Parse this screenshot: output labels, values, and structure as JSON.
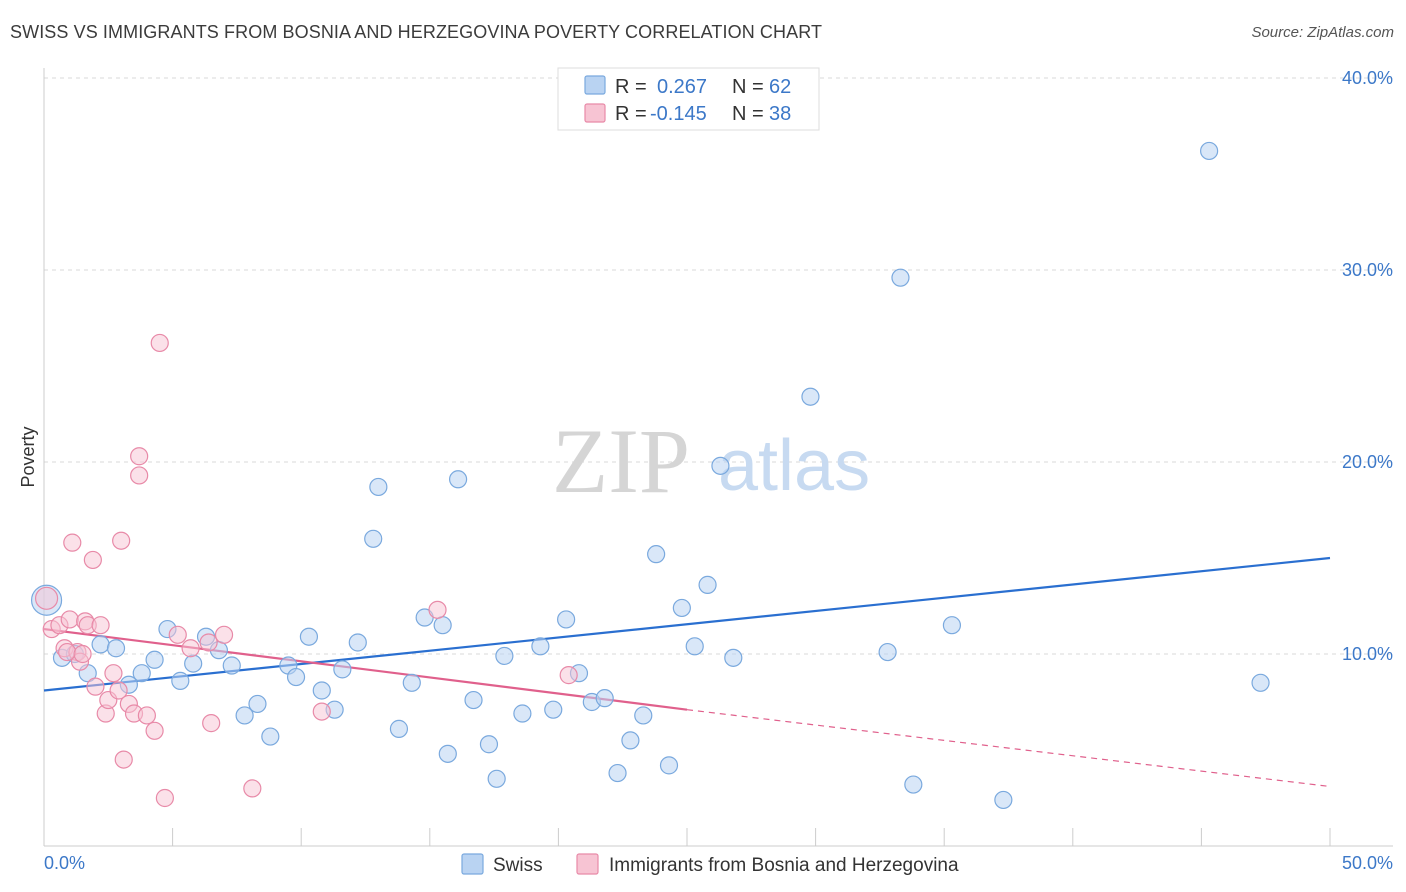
{
  "title": "SWISS VS IMMIGRANTS FROM BOSNIA AND HERZEGOVINA POVERTY CORRELATION CHART",
  "source": "Source: ZipAtlas.com",
  "watermark": {
    "zip": "ZIP",
    "atlas": "atlas"
  },
  "colors": {
    "swiss_fill": "#b9d3f2",
    "swiss_stroke": "#7aa9de",
    "swiss_line": "#2a6fd0",
    "bosnia_fill": "#f7c4d3",
    "bosnia_stroke": "#e88aa8",
    "bosnia_line": "#e0608c",
    "grid": "#d9d9d9",
    "tick_label": "#3c78c8"
  },
  "legend": {
    "rows": [
      {
        "r_label": "R =",
        "r_value": "0.267",
        "n_label": "N =",
        "n_value": "62"
      },
      {
        "r_label": "R =",
        "r_value": "-0.145",
        "n_label": "N =",
        "n_value": "38"
      }
    ]
  },
  "chart_data": {
    "type": "scatter",
    "ylabel": "Poverty",
    "xlim": [
      0,
      50
    ],
    "ylim": [
      0,
      40
    ],
    "x_tick_labels": [
      "0.0%",
      "50.0%"
    ],
    "y_ticks": [
      10,
      20,
      30,
      40
    ],
    "y_tick_labels": [
      "10.0%",
      "20.0%",
      "30.0%",
      "40.0%"
    ],
    "grid": "horizontal dashed",
    "series": [
      {
        "name": "Swiss",
        "points": [
          [
            0.1,
            12.8
          ],
          [
            0.7,
            9.8
          ],
          [
            1.2,
            10.0
          ],
          [
            1.7,
            9.0
          ],
          [
            2.2,
            10.5
          ],
          [
            2.8,
            10.3
          ],
          [
            3.3,
            8.4
          ],
          [
            3.8,
            9.0
          ],
          [
            4.3,
            9.7
          ],
          [
            4.8,
            11.3
          ],
          [
            5.3,
            8.6
          ],
          [
            5.8,
            9.5
          ],
          [
            6.3,
            10.9
          ],
          [
            6.8,
            10.2
          ],
          [
            7.3,
            9.4
          ],
          [
            7.8,
            6.8
          ],
          [
            8.3,
            7.4
          ],
          [
            8.8,
            5.7
          ],
          [
            9.5,
            9.4
          ],
          [
            9.8,
            8.8
          ],
          [
            10.3,
            10.9
          ],
          [
            10.8,
            8.1
          ],
          [
            11.3,
            7.1
          ],
          [
            11.6,
            9.2
          ],
          [
            12.2,
            10.6
          ],
          [
            12.8,
            16.0
          ],
          [
            13.0,
            18.7
          ],
          [
            13.8,
            6.1
          ],
          [
            14.3,
            8.5
          ],
          [
            14.8,
            11.9
          ],
          [
            15.5,
            11.5
          ],
          [
            15.7,
            4.8
          ],
          [
            16.1,
            19.1
          ],
          [
            16.7,
            7.6
          ],
          [
            17.3,
            5.3
          ],
          [
            17.6,
            3.5
          ],
          [
            17.9,
            9.9
          ],
          [
            18.6,
            6.9
          ],
          [
            19.3,
            10.4
          ],
          [
            19.8,
            7.1
          ],
          [
            20.3,
            11.8
          ],
          [
            20.8,
            9.0
          ],
          [
            21.3,
            7.5
          ],
          [
            21.8,
            7.7
          ],
          [
            22.3,
            3.8
          ],
          [
            22.8,
            5.5
          ],
          [
            23.3,
            6.8
          ],
          [
            23.8,
            15.2
          ],
          [
            24.3,
            4.2
          ],
          [
            24.8,
            12.4
          ],
          [
            25.3,
            10.4
          ],
          [
            25.8,
            13.6
          ],
          [
            26.3,
            19.8
          ],
          [
            26.8,
            9.8
          ],
          [
            29.8,
            23.4
          ],
          [
            32.8,
            10.1
          ],
          [
            33.3,
            29.6
          ],
          [
            33.8,
            3.2
          ],
          [
            35.3,
            11.5
          ],
          [
            37.3,
            2.4
          ],
          [
            45.3,
            36.2
          ],
          [
            47.3,
            8.5
          ]
        ],
        "trend": {
          "x": [
            0,
            50
          ],
          "y": [
            8.1,
            15.0
          ]
        }
      },
      {
        "name": "Immigrants from Bosnia and Herzegovina",
        "points": [
          [
            0.1,
            12.9
          ],
          [
            0.3,
            11.3
          ],
          [
            0.6,
            11.5
          ],
          [
            0.8,
            10.3
          ],
          [
            1.0,
            11.8
          ],
          [
            1.1,
            15.8
          ],
          [
            1.3,
            10.1
          ],
          [
            1.4,
            9.6
          ],
          [
            1.6,
            11.7
          ],
          [
            1.7,
            11.5
          ],
          [
            1.9,
            14.9
          ],
          [
            2.0,
            8.3
          ],
          [
            2.2,
            11.5
          ],
          [
            2.4,
            6.9
          ],
          [
            2.5,
            7.6
          ],
          [
            2.7,
            9.0
          ],
          [
            2.9,
            8.1
          ],
          [
            3.0,
            15.9
          ],
          [
            3.1,
            4.5
          ],
          [
            3.3,
            7.4
          ],
          [
            3.5,
            6.9
          ],
          [
            3.7,
            20.3
          ],
          [
            3.7,
            19.3
          ],
          [
            4.0,
            6.8
          ],
          [
            4.3,
            6.0
          ],
          [
            4.5,
            26.2
          ],
          [
            4.7,
            2.5
          ],
          [
            5.2,
            11.0
          ],
          [
            5.7,
            10.3
          ],
          [
            6.4,
            10.6
          ],
          [
            6.5,
            6.4
          ],
          [
            7.0,
            11.0
          ],
          [
            8.1,
            3.0
          ],
          [
            10.8,
            7.0
          ],
          [
            15.3,
            12.3
          ],
          [
            20.4,
            8.9
          ],
          [
            0.9,
            10.1
          ],
          [
            1.5,
            10.0
          ]
        ],
        "trend": {
          "x": [
            0,
            25
          ],
          "y": [
            11.3,
            7.1
          ]
        },
        "trend_extension": {
          "x": [
            25,
            50
          ],
          "y": [
            7.1,
            3.1
          ]
        }
      }
    ]
  }
}
